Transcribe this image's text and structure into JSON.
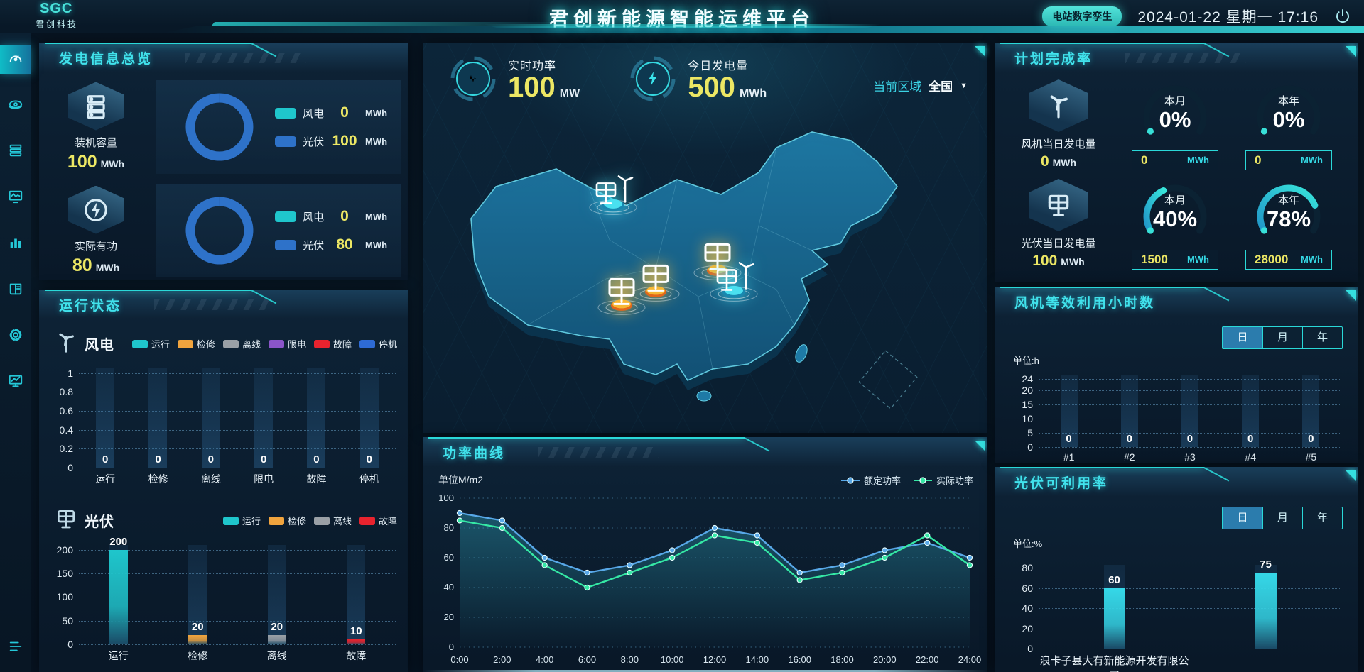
{
  "header": {
    "logo_text": "SGC",
    "logo_company": "君创科技",
    "title": "君创新能源智能运维平台",
    "badge": "电站数字孪生",
    "datetime": "2024-01-22 星期一 17:16"
  },
  "sidebar": {
    "items": [
      {
        "name": "dashboard",
        "icon": "gauge-icon",
        "active": true
      },
      {
        "name": "monitoring",
        "icon": "eye-icon",
        "active": false
      },
      {
        "name": "devices",
        "icon": "server-stack-icon",
        "active": false
      },
      {
        "name": "analysis",
        "icon": "monitor-wave-icon",
        "active": false
      },
      {
        "name": "statistics",
        "icon": "bar-chart-icon",
        "active": false
      },
      {
        "name": "reports",
        "icon": "book-icon",
        "active": false
      },
      {
        "name": "settings",
        "icon": "gear-icon",
        "active": false
      },
      {
        "name": "terminal",
        "icon": "monitor-line-icon",
        "active": false
      }
    ]
  },
  "left": {
    "gen_overview": {
      "title": "发电信息总览",
      "cards": [
        {
          "icon": "server",
          "label": "装机容量",
          "value": "100",
          "unit": "MWh",
          "donut_id": "capacity_donut"
        },
        {
          "icon": "power",
          "label": "实际有功",
          "value": "80",
          "unit": "MWh",
          "donut_id": "active_donut"
        }
      ]
    },
    "run_status": {
      "title": "运行状态",
      "wind_label": "风电",
      "pv_label": "光伏"
    }
  },
  "center": {
    "stats": [
      {
        "icon": "pulse",
        "label": "实时功率",
        "value": "100",
        "unit": "MW"
      },
      {
        "icon": "bolt",
        "label": "今日发电量",
        "value": "500",
        "unit": "MWh"
      }
    ],
    "region": {
      "label": "当前区域",
      "value": "全国",
      "caret": "▼"
    },
    "map_markers": [
      {
        "type": "wind-solar-station",
        "x": 32.5,
        "y": 26.0
      },
      {
        "type": "solar-station",
        "x": 52.5,
        "y": 47.2
      },
      {
        "type": "solar-station",
        "x": 40.7,
        "y": 54.2
      },
      {
        "type": "solar-station",
        "x": 34.2,
        "y": 58.6
      },
      {
        "type": "wind-solar-station",
        "x": 55.5,
        "y": 54.2
      }
    ],
    "power_curve_title": "功率曲线"
  },
  "right": {
    "plan": {
      "title": "计划完成率",
      "rows": [
        {
          "icon": "wind-turbine",
          "label": "风机当日发电量",
          "value": "0",
          "unit": "MWh",
          "gauges": [
            {
              "label": "本月",
              "percent": 0,
              "display": "0%",
              "box_value": "0",
              "box_unit": "MWh"
            },
            {
              "label": "本年",
              "percent": 0,
              "display": "0%",
              "box_value": "0",
              "box_unit": "MWh"
            }
          ]
        },
        {
          "icon": "solar-panel",
          "label": "光伏当日发电量",
          "value": "100",
          "unit": "MWh",
          "gauges": [
            {
              "label": "本月",
              "percent": 40,
              "display": "40%",
              "box_value": "1500",
              "box_unit": "MWh"
            },
            {
              "label": "本年",
              "percent": 78,
              "display": "78%",
              "box_value": "28000",
              "box_unit": "MWh"
            }
          ]
        }
      ]
    },
    "wind_hours": {
      "title": "风机等效利用小时数",
      "tabs": [
        "日",
        "月",
        "年"
      ],
      "active_tab": "日",
      "unit_label": "单位:h"
    },
    "pv_avail": {
      "title": "光伏可利用率",
      "tabs": [
        "日",
        "月",
        "年"
      ],
      "active_tab": "日",
      "unit_label": "单位:%"
    }
  },
  "chart_data": [
    {
      "id": "capacity_donut",
      "type": "pie",
      "series": [
        {
          "name": "风电",
          "value": 0,
          "unit": "MWh",
          "color": "#1fc6cc"
        },
        {
          "name": "光伏",
          "value": 100,
          "unit": "MWh",
          "color": "#2e72c9"
        }
      ]
    },
    {
      "id": "active_donut",
      "type": "pie",
      "series": [
        {
          "name": "风电",
          "value": 0,
          "unit": "MWh",
          "color": "#1fc6cc"
        },
        {
          "name": "光伏",
          "value": 80,
          "unit": "MWh",
          "color": "#2e72c9"
        }
      ]
    },
    {
      "id": "wind_status",
      "type": "bar",
      "title": "风电运行状态",
      "categories": [
        "运行",
        "检修",
        "离线",
        "限电",
        "故障",
        "停机"
      ],
      "values": [
        0,
        0,
        0,
        0,
        0,
        0
      ],
      "colors": [
        "#1fc6cc",
        "#f0a43e",
        "#9aa0a6",
        "#8a55c8",
        "#e8232e",
        "#2e6bd5"
      ],
      "legend": [
        "运行",
        "检修",
        "离线",
        "限电",
        "故障",
        "停机"
      ],
      "ylim": [
        0,
        1
      ],
      "yticks": [
        1,
        0.8,
        0.6,
        0.4,
        0.2,
        0
      ],
      "grid": true
    },
    {
      "id": "pv_status",
      "type": "bar",
      "title": "光伏运行状态",
      "categories": [
        "运行",
        "检修",
        "离线",
        "故障"
      ],
      "values": [
        200,
        20,
        20,
        10
      ],
      "colors": [
        "#1fc6cc",
        "#f0a43e",
        "#9aa0a6",
        "#e8232e"
      ],
      "legend": [
        "运行",
        "检修",
        "离线",
        "故障"
      ],
      "ylim": [
        0,
        200
      ],
      "yticks": [
        200,
        150,
        100,
        50,
        0
      ],
      "grid": true
    },
    {
      "id": "power_curve",
      "type": "line",
      "title": "功率曲线",
      "ylabel": "单位M/m2",
      "ylim": [
        0,
        100
      ],
      "yticks": [
        100,
        80,
        60,
        40,
        20,
        0
      ],
      "grid": true,
      "legend_position": "top-right",
      "x": [
        "0:00",
        "2:00",
        "4:00",
        "6:00",
        "8:00",
        "10:00",
        "12:00",
        "14:00",
        "16:00",
        "18:00",
        "20:00",
        "22:00",
        "24:00"
      ],
      "series": [
        {
          "name": "额定功率",
          "color": "#58a8e8",
          "values": [
            90,
            85,
            60,
            50,
            55,
            65,
            80,
            75,
            50,
            55,
            65,
            70,
            60
          ]
        },
        {
          "name": "实际功率",
          "color": "#35e8a5",
          "values": [
            85,
            80,
            55,
            40,
            50,
            60,
            75,
            70,
            45,
            50,
            60,
            75,
            55
          ]
        }
      ]
    },
    {
      "id": "wind_hours",
      "type": "bar",
      "title": "风机等效利用小时数",
      "categories": [
        "#1",
        "#2",
        "#3",
        "#4",
        "#5"
      ],
      "values": [
        0,
        0,
        0,
        0,
        0
      ],
      "colors": [
        "#2ea8c8",
        "#2ea8c8",
        "#2ea8c8",
        "#2ea8c8",
        "#2ea8c8"
      ],
      "ylim": [
        0,
        24
      ],
      "yticks": [
        24,
        20,
        15,
        10,
        5,
        0
      ],
      "grid": true
    },
    {
      "id": "pv_avail",
      "type": "bar",
      "title": "光伏可利用率",
      "categories": [
        "浪卡子县大有新能源开发有限公司",
        ""
      ],
      "values": [
        60,
        75
      ],
      "colors": [
        "#35d8e8",
        "#35d8e8"
      ],
      "ylim": [
        0,
        80
      ],
      "yticks": [
        80,
        60,
        40,
        20,
        0
      ],
      "grid": true
    }
  ]
}
